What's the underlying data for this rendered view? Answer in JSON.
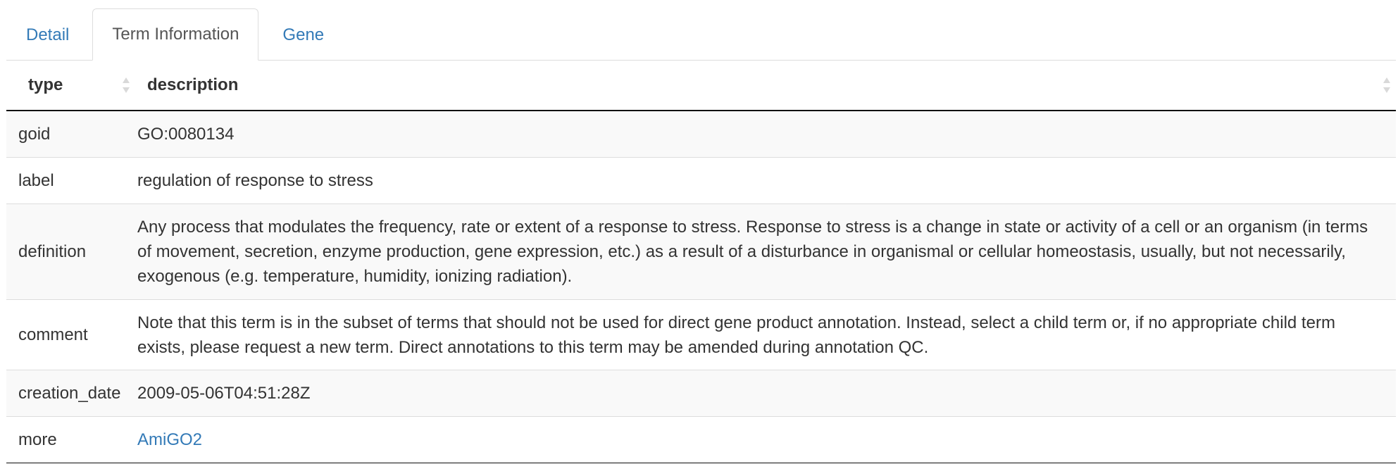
{
  "tabs": [
    {
      "label": "Detail",
      "active": false
    },
    {
      "label": "Term Information",
      "active": true
    },
    {
      "label": "Gene",
      "active": false
    }
  ],
  "table": {
    "headers": {
      "type": "type",
      "description": "description"
    },
    "rows": [
      {
        "type": "goid",
        "description": "GO:0080134"
      },
      {
        "type": "label",
        "description": "regulation of response to stress"
      },
      {
        "type": "definition",
        "description": "Any process that modulates the frequency, rate or extent of a response to stress. Response to stress is a change in state or activity of a cell or an organism (in terms of movement, secretion, enzyme production, gene expression, etc.) as a result of a disturbance in organismal or cellular homeostasis, usually, but not necessarily, exogenous (e.g. temperature, humidity, ionizing radiation)."
      },
      {
        "type": "comment",
        "description": "Note that this term is in the subset of terms that should not be used for direct gene product annotation. Instead, select a child term or, if no appropriate child term exists, please request a new term. Direct annotations to this term may be amended during annotation QC."
      },
      {
        "type": "creation_date",
        "description": "2009-05-06T04:51:28Z"
      },
      {
        "type": "more",
        "description": "AmiGO2"
      }
    ]
  },
  "icons": {
    "sort": "sort-both-icon"
  },
  "colors": {
    "link": "#337ab7",
    "stripe": "#f9f9f9",
    "border": "#dddddd",
    "text": "#333333"
  }
}
